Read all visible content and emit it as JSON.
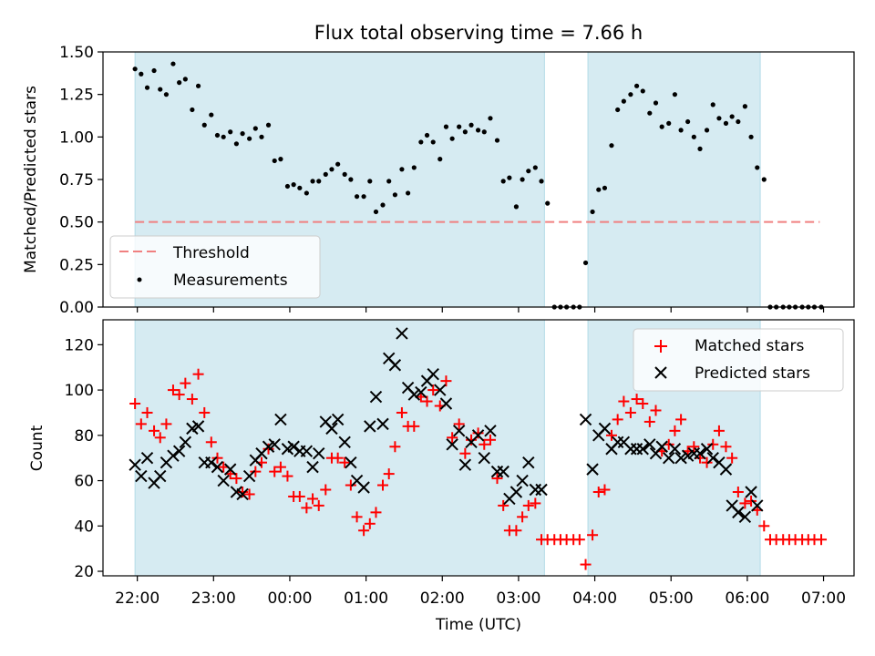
{
  "chart_data": [
    {
      "type": "scatter",
      "title": "Flux total observing time = 7.66 h",
      "xlabel": "",
      "ylabel": "Matched/Predicted stars",
      "ylim": [
        0,
        1.5
      ],
      "yticks": [
        0,
        0.25,
        0.5,
        0.75,
        1.0,
        1.25,
        1.5
      ],
      "yticklabels": [
        "0.00",
        "0.25",
        "0.50",
        "0.75",
        "1.00",
        "1.25",
        "1.50"
      ],
      "xlim": [
        21.55,
        31.4
      ],
      "xticks": [
        22,
        23,
        24,
        25,
        26,
        27,
        28,
        29,
        30,
        31
      ],
      "xticklabels": [
        "22:00",
        "23:00",
        "00:00",
        "01:00",
        "02:00",
        "03:00",
        "04:00",
        "05:00",
        "06:00",
        "07:00"
      ],
      "shaded_intervals": [
        [
          21.97,
          27.34
        ],
        [
          27.91,
          30.17
        ]
      ],
      "legend_position": "lower left",
      "threshold": {
        "name": "Threshold",
        "value": 0.5,
        "x_range": [
          21.97,
          30.95
        ]
      },
      "series": [
        {
          "name": "Measurements",
          "marker": "dot",
          "x": [
            21.97,
            22.05,
            22.13,
            22.22,
            22.3,
            22.38,
            22.47,
            22.55,
            22.63,
            22.72,
            22.8,
            22.88,
            22.97,
            23.05,
            23.13,
            23.22,
            23.3,
            23.38,
            23.47,
            23.55,
            23.63,
            23.72,
            23.8,
            23.88,
            23.97,
            24.05,
            24.13,
            24.22,
            24.3,
            24.38,
            24.47,
            24.55,
            24.63,
            24.72,
            24.8,
            24.88,
            24.97,
            25.05,
            25.13,
            25.22,
            25.3,
            25.38,
            25.47,
            25.55,
            25.63,
            25.72,
            25.8,
            25.88,
            25.97,
            26.05,
            26.13,
            26.22,
            26.3,
            26.38,
            26.47,
            26.55,
            26.63,
            26.72,
            26.8,
            26.88,
            26.97,
            27.05,
            27.13,
            27.22,
            27.3,
            27.38,
            27.47,
            27.55,
            27.63,
            27.72,
            27.8,
            27.88,
            27.97,
            28.05,
            28.13,
            28.22,
            28.3,
            28.38,
            28.47,
            28.55,
            28.63,
            28.72,
            28.8,
            28.88,
            28.97,
            29.05,
            29.13,
            29.22,
            29.3,
            29.38,
            29.47,
            29.55,
            29.63,
            29.72,
            29.8,
            29.88,
            29.97,
            30.05,
            30.13,
            30.22,
            30.3,
            30.38,
            30.47,
            30.55,
            30.63,
            30.72,
            30.8,
            30.88,
            30.97
          ],
          "y": [
            1.4,
            1.37,
            1.29,
            1.39,
            1.28,
            1.25,
            1.43,
            1.32,
            1.34,
            1.16,
            1.3,
            1.07,
            1.13,
            1.01,
            1.0,
            1.03,
            0.96,
            1.02,
            0.99,
            1.05,
            1.0,
            1.07,
            0.86,
            0.87,
            0.71,
            0.72,
            0.7,
            0.67,
            0.74,
            0.74,
            0.78,
            0.81,
            0.84,
            0.78,
            0.75,
            0.65,
            0.65,
            0.74,
            0.56,
            0.6,
            0.74,
            0.66,
            0.81,
            0.67,
            0.82,
            0.97,
            1.01,
            0.97,
            0.87,
            1.06,
            0.99,
            1.06,
            1.03,
            1.07,
            1.04,
            1.03,
            1.11,
            0.98,
            0.74,
            0.76,
            0.59,
            0.75,
            0.8,
            0.82,
            0.74,
            0.61,
            0.0,
            0.0,
            0.0,
            0.0,
            0.0,
            0.26,
            0.56,
            0.69,
            0.7,
            0.95,
            1.16,
            1.21,
            1.25,
            1.3,
            1.27,
            1.14,
            1.2,
            1.06,
            1.08,
            1.25,
            1.04,
            1.09,
            1.0,
            0.93,
            1.04,
            1.19,
            1.11,
            1.08,
            1.12,
            1.09,
            1.18,
            1.0,
            0.82,
            0.75,
            0.0,
            0.0,
            0.0,
            0.0,
            0.0,
            0.0,
            0.0,
            0.0,
            0.0
          ]
        }
      ]
    },
    {
      "type": "scatter",
      "title": "",
      "xlabel": "Time (UTC)",
      "ylabel": "Count",
      "ylim": [
        18,
        131
      ],
      "yticks": [
        20,
        40,
        60,
        80,
        100,
        120
      ],
      "yticklabels": [
        "20",
        "40",
        "60",
        "80",
        "100",
        "120"
      ],
      "xlim": [
        21.55,
        31.4
      ],
      "xticks": [
        22,
        23,
        24,
        25,
        26,
        27,
        28,
        29,
        30,
        31
      ],
      "xticklabels": [
        "22:00",
        "23:00",
        "00:00",
        "01:00",
        "02:00",
        "03:00",
        "04:00",
        "05:00",
        "06:00",
        "07:00"
      ],
      "shaded_intervals": [
        [
          21.97,
          27.34
        ],
        [
          27.91,
          30.17
        ]
      ],
      "legend_position": "upper right",
      "series": [
        {
          "name": "Matched stars",
          "marker": "plus",
          "color": "#ff0000",
          "x": [
            21.97,
            22.05,
            22.13,
            22.22,
            22.3,
            22.38,
            22.47,
            22.55,
            22.63,
            22.72,
            22.8,
            22.88,
            22.97,
            23.05,
            23.13,
            23.22,
            23.3,
            23.38,
            23.47,
            23.55,
            23.63,
            23.72,
            23.8,
            23.88,
            23.97,
            24.05,
            24.13,
            24.22,
            24.3,
            24.38,
            24.47,
            24.55,
            24.63,
            24.72,
            24.8,
            24.88,
            24.97,
            25.05,
            25.13,
            25.22,
            25.3,
            25.38,
            25.47,
            25.55,
            25.63,
            25.72,
            25.8,
            25.88,
            25.97,
            26.05,
            26.13,
            26.22,
            26.3,
            26.38,
            26.47,
            26.55,
            26.63,
            26.72,
            26.8,
            26.88,
            26.97,
            27.05,
            27.13,
            27.22,
            27.3,
            27.38,
            27.47,
            27.55,
            27.63,
            27.72,
            27.8,
            27.88,
            27.97,
            28.05,
            28.13,
            28.22,
            28.3,
            28.38,
            28.47,
            28.55,
            28.63,
            28.72,
            28.8,
            28.88,
            28.97,
            29.05,
            29.13,
            29.22,
            29.3,
            29.38,
            29.47,
            29.55,
            29.63,
            29.72,
            29.8,
            29.88,
            29.97,
            30.05,
            30.13,
            30.22,
            30.3,
            30.38,
            30.47,
            30.55,
            30.63,
            30.72,
            30.8,
            30.88,
            30.97
          ],
          "y": [
            94,
            85,
            90,
            82,
            79,
            85,
            100,
            98,
            103,
            96,
            107,
            90,
            77,
            70,
            66,
            63,
            61,
            55,
            54,
            64,
            68,
            74,
            64,
            66,
            62,
            53,
            53,
            48,
            52,
            49,
            56,
            70,
            70,
            68,
            58,
            44,
            38,
            41,
            46,
            58,
            63,
            75,
            90,
            84,
            84,
            97,
            95,
            100,
            93,
            104,
            79,
            85,
            72,
            78,
            81,
            76,
            78,
            61,
            49,
            38,
            38,
            44,
            49,
            50,
            34,
            34,
            34,
            34,
            34,
            34,
            34,
            23,
            36,
            55,
            56,
            80,
            87,
            95,
            90,
            96,
            94,
            86,
            91,
            73,
            76,
            82,
            87,
            73,
            75,
            70,
            68,
            76,
            82,
            75,
            70,
            55,
            50,
            51,
            47,
            40,
            34,
            34,
            34,
            34,
            34,
            34,
            34,
            34,
            34
          ]
        },
        {
          "name": "Predicted stars",
          "marker": "x",
          "color": "#000000",
          "x": [
            21.97,
            22.05,
            22.13,
            22.22,
            22.3,
            22.38,
            22.47,
            22.55,
            22.63,
            22.72,
            22.8,
            22.88,
            22.97,
            23.05,
            23.13,
            23.22,
            23.3,
            23.38,
            23.47,
            23.55,
            23.63,
            23.72,
            23.8,
            23.88,
            23.97,
            24.05,
            24.13,
            24.22,
            24.3,
            24.38,
            24.47,
            24.55,
            24.63,
            24.72,
            24.8,
            24.88,
            24.97,
            25.05,
            25.13,
            25.22,
            25.3,
            25.38,
            25.47,
            25.55,
            25.63,
            25.72,
            25.8,
            25.88,
            25.97,
            26.05,
            26.13,
            26.22,
            26.3,
            26.38,
            26.47,
            26.55,
            26.63,
            26.72,
            26.8,
            26.88,
            26.97,
            27.05,
            27.13,
            27.22,
            27.3,
            27.88,
            27.97,
            28.05,
            28.13,
            28.22,
            28.3,
            28.38,
            28.47,
            28.55,
            28.63,
            28.72,
            28.8,
            28.88,
            28.97,
            29.05,
            29.13,
            29.22,
            29.3,
            29.38,
            29.47,
            29.55,
            29.63,
            29.72,
            29.8,
            29.88,
            29.97,
            30.05,
            30.13
          ],
          "y": [
            67,
            62,
            70,
            59,
            62,
            68,
            71,
            73,
            77,
            83,
            84,
            68,
            68,
            66,
            60,
            65,
            55,
            54,
            62,
            69,
            72,
            75,
            76,
            87,
            74,
            75,
            73,
            73,
            66,
            72,
            86,
            83,
            87,
            77,
            68,
            60,
            57,
            84,
            97,
            85,
            114,
            111,
            125,
            101,
            98,
            99,
            104,
            107,
            100,
            94,
            76,
            82,
            67,
            77,
            80,
            70,
            82,
            64,
            64,
            52,
            55,
            60,
            68,
            56,
            56,
            87,
            65,
            80,
            83,
            74,
            77,
            77,
            74,
            74,
            74,
            76,
            72,
            75,
            70,
            74,
            70,
            71,
            72,
            72,
            74,
            70,
            68,
            65,
            49,
            46,
            44,
            55,
            49
          ]
        }
      ]
    }
  ]
}
